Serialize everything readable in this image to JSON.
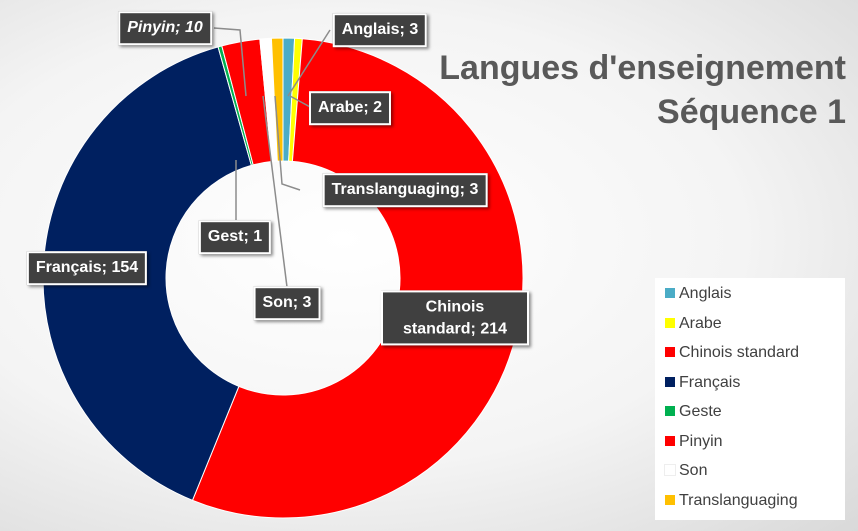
{
  "chart_data": {
    "type": "donut",
    "title": "Langues d'enseignement\nSéquence 1",
    "categories": [
      "Anglais",
      "Arabe",
      "Chinois standard",
      "Français",
      "Geste",
      "Pinyin",
      "Son",
      "Translanguaging"
    ],
    "values": [
      3,
      2,
      214,
      154,
      1,
      10,
      3,
      3
    ],
    "value_labels": [
      "Anglais; 3",
      "Arabe; 2",
      "Chinois standard; 214",
      "Français; 154",
      "Gest; 1",
      "Pinyin; 10",
      "Son; 3",
      "Translanguaging; 3"
    ],
    "colors": [
      "#4bacc6",
      "#ffff00",
      "#ff0000",
      "#002060",
      "#00b050",
      "#ff0000",
      "#ffffff",
      "#ffc000"
    ],
    "legend": "bottom-right"
  }
}
